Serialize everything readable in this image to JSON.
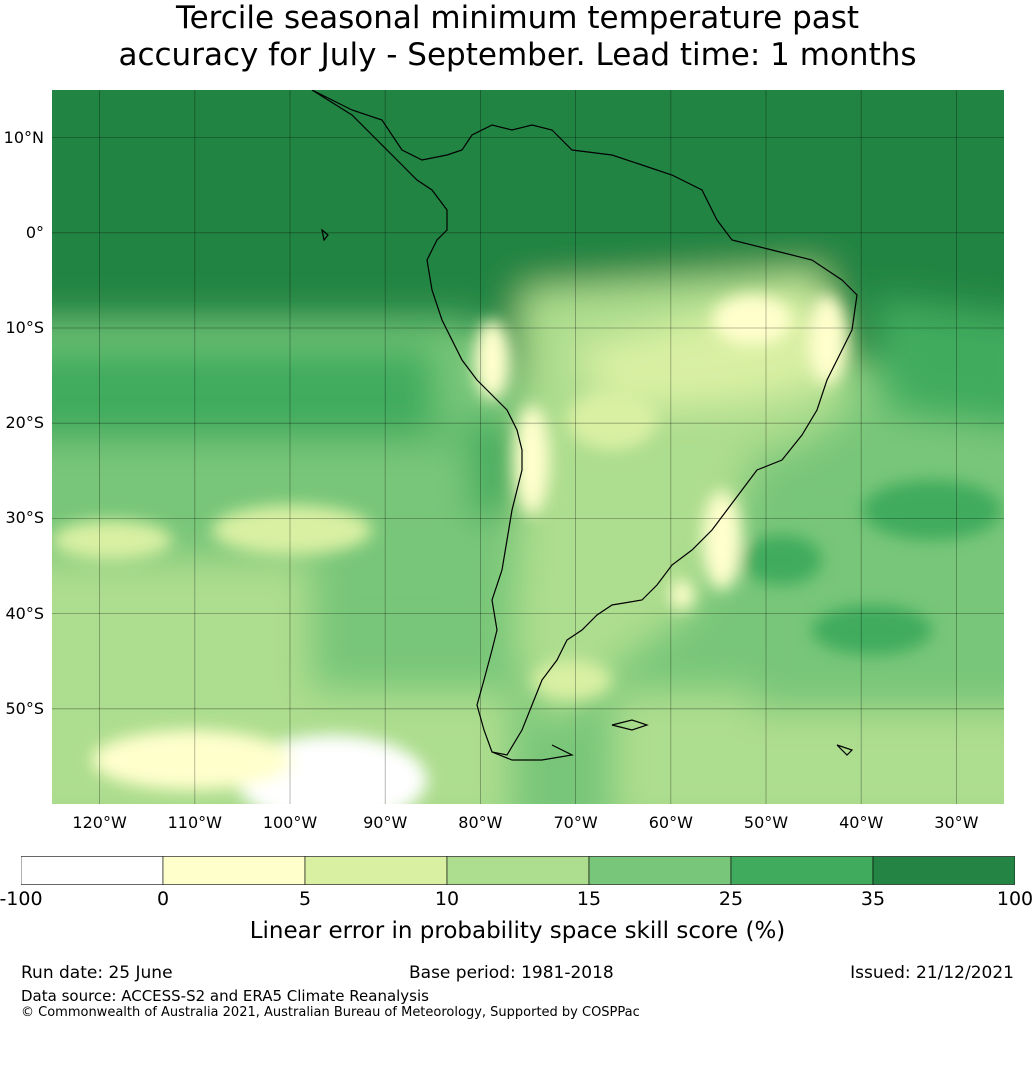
{
  "title": {
    "line1": "Tercile seasonal minimum temperature past",
    "line2": "accuracy for July - September. Lead time: 1 months"
  },
  "map": {
    "lat_labels": [
      "10°N",
      "0°",
      "10°S",
      "20°S",
      "30°S",
      "40°S",
      "50°S"
    ],
    "lat_values": [
      10,
      0,
      -10,
      -20,
      -30,
      -40,
      -50
    ],
    "lon_labels": [
      "120°W",
      "110°W",
      "100°W",
      "90°W",
      "80°W",
      "70°W",
      "60°W",
      "50°W",
      "40°W",
      "30°W"
    ],
    "lon_values": [
      -120,
      -110,
      -100,
      -90,
      -80,
      -70,
      -60,
      -50,
      -40,
      -30
    ],
    "lon_range": [
      -125,
      -25
    ],
    "lat_range": [
      -60,
      15
    ]
  },
  "colorbar": {
    "ticks": [
      "-100",
      "0",
      "5",
      "10",
      "15",
      "25",
      "35",
      "100"
    ],
    "colors": [
      "#ffffff",
      "#ffffcc",
      "#d9f0a3",
      "#addd8e",
      "#78c679",
      "#41ab5d",
      "#238443"
    ],
    "label": "Linear error in probability space skill score (%)"
  },
  "footer": {
    "run_date": "Run date: 25 June",
    "base_period": "Base period: 1981-2018",
    "issued": "Issued: 21/12/2021",
    "data_source": "Data source: ACCESS-S2 and ERA5 Climate Reanalysis",
    "copyright": "© Commonwealth of Australia 2021, Australian Bureau of Meteorology, Supported by COSPPac"
  }
}
